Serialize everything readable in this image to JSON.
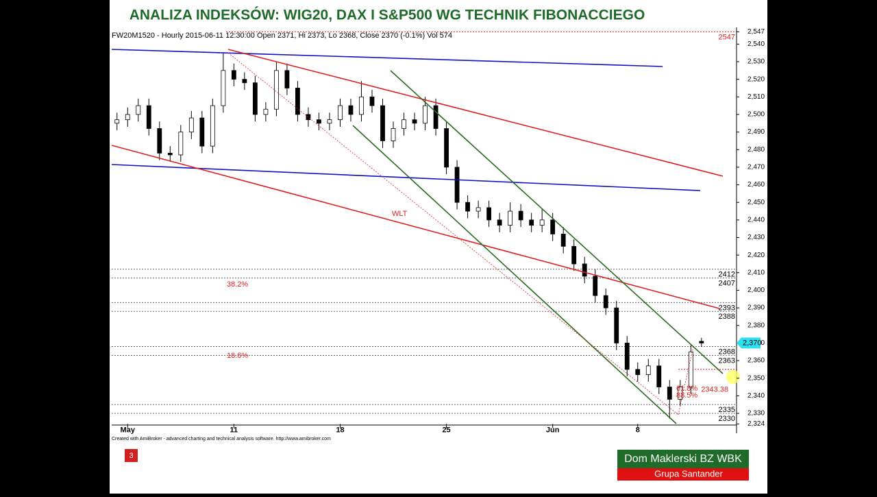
{
  "chart_data": {
    "type": "candlestick",
    "title": "ANALIZA INDEKSÓW: WIG20, DAX I S&P500 WG TECHNIK FIBONACCIEGO",
    "header": "FW20M1520 - Hourly 2015-06-11 12:30:00 Open 2371, Hi 2373, Lo 2368, Close 2370 (-0.1%) Vol 574",
    "xlim": [
      -0.5,
      58.3
    ],
    "xticks": [
      {
        "value": 1,
        "label": "May"
      },
      {
        "value": 11,
        "label": "11"
      },
      {
        "value": 21,
        "label": "18"
      },
      {
        "value": 31,
        "label": "25"
      },
      {
        "value": 41,
        "label": "Jun"
      },
      {
        "value": 49,
        "label": "8"
      }
    ],
    "ylim": [
      2324,
      2547
    ],
    "yticks": [
      {
        "value": 2324,
        "label": "2,324"
      },
      {
        "value": 2330,
        "label": "2,330"
      },
      {
        "value": 2340,
        "label": "2,340"
      },
      {
        "value": 2350,
        "label": "2,350"
      },
      {
        "value": 2360,
        "label": "2,360"
      },
      {
        "value": 2370,
        "label": "2,370"
      },
      {
        "value": 2380,
        "label": "2,380"
      },
      {
        "value": 2390,
        "label": "2,390"
      },
      {
        "value": 2400,
        "label": "2,400"
      },
      {
        "value": 2410,
        "label": "2,410"
      },
      {
        "value": 2420,
        "label": "2,420"
      },
      {
        "value": 2430,
        "label": "2,430"
      },
      {
        "value": 2440,
        "label": "2,440"
      },
      {
        "value": 2450,
        "label": "2,450"
      },
      {
        "value": 2460,
        "label": "2,460"
      },
      {
        "value": 2470,
        "label": "2,470"
      },
      {
        "value": 2480,
        "label": "2,480"
      },
      {
        "value": 2490,
        "label": "2,490"
      },
      {
        "value": 2500,
        "label": "2,500"
      },
      {
        "value": 2510,
        "label": "2,510"
      },
      {
        "value": 2520,
        "label": "2,520"
      },
      {
        "value": 2530,
        "label": "2,530"
      },
      {
        "value": 2540,
        "label": "2,540"
      },
      {
        "value": 2547,
        "label": "2,547"
      }
    ],
    "open": [
      2495,
      2497,
      2500,
      2505,
      2492,
      2478,
      2477,
      2490,
      2498,
      2482,
      2505,
      2525,
      2520,
      2518,
      2500,
      2503,
      2525,
      2515,
      2500,
      2497,
      2495,
      2497,
      2505,
      2500,
      2510,
      2505,
      2485,
      2492,
      2497,
      2495,
      2505,
      2492,
      2470,
      2450,
      2445,
      2447,
      2440,
      2437,
      2445,
      2440,
      2437,
      2440,
      2432,
      2425,
      2415,
      2408,
      2397,
      2390,
      2370,
      2355,
      2352,
      2357,
      2345,
      2338,
      2345,
      2371
    ],
    "high": [
      2501,
      2504,
      2509,
      2509,
      2496,
      2482,
      2494,
      2502,
      2502,
      2509,
      2535,
      2529,
      2524,
      2522,
      2507,
      2530,
      2529,
      2519,
      2504,
      2501,
      2501,
      2509,
      2509,
      2519,
      2514,
      2509,
      2496,
      2501,
      2501,
      2510,
      2509,
      2496,
      2474,
      2454,
      2451,
      2451,
      2444,
      2450,
      2449,
      2444,
      2446,
      2444,
      2436,
      2429,
      2419,
      2412,
      2401,
      2394,
      2374,
      2359,
      2361,
      2361,
      2349,
      2349,
      2369,
      2373
    ],
    "low": [
      2491,
      2493,
      2496,
      2488,
      2474,
      2473,
      2473,
      2486,
      2478,
      2478,
      2501,
      2516,
      2514,
      2496,
      2496,
      2499,
      2511,
      2496,
      2493,
      2491,
      2491,
      2493,
      2496,
      2496,
      2501,
      2481,
      2481,
      2488,
      2491,
      2491,
      2488,
      2466,
      2446,
      2441,
      2441,
      2436,
      2433,
      2433,
      2436,
      2433,
      2433,
      2428,
      2421,
      2411,
      2404,
      2393,
      2386,
      2366,
      2351,
      2348,
      2348,
      2341,
      2327,
      2334,
      2341,
      2368
    ],
    "close": [
      2497,
      2500,
      2505,
      2492,
      2478,
      2477,
      2490,
      2498,
      2482,
      2505,
      2525,
      2520,
      2518,
      2500,
      2503,
      2525,
      2515,
      2500,
      2497,
      2495,
      2497,
      2505,
      2500,
      2510,
      2505,
      2485,
      2492,
      2497,
      2495,
      2505,
      2492,
      2470,
      2450,
      2445,
      2447,
      2440,
      2437,
      2445,
      2440,
      2437,
      2440,
      2432,
      2425,
      2415,
      2408,
      2397,
      2390,
      2370,
      2355,
      2352,
      2357,
      2345,
      2338,
      2345,
      2365,
      2370
    ],
    "top_level": 2547,
    "levels": [
      2412,
      2407,
      2393,
      2388,
      2368,
      2363,
      2335,
      2330
    ],
    "target": {
      "value": 2343.38,
      "label": "2343.38"
    },
    "last_price": {
      "value": 2370,
      "label": "2,370"
    },
    "annotations": {
      "wlt": "WLT",
      "fib_38": "38.2%",
      "fib_18": "18.6%",
      "fib_61": "61.8%",
      "fib_88": "88.5%"
    },
    "credit": "Created with AmiBroker - advanced charting and technical analysis software. http://www.amibroker.com"
  },
  "slide_number": "3",
  "logo": {
    "name": "Dom Maklerski BZ WBK",
    "group": "Grupa Santander"
  }
}
